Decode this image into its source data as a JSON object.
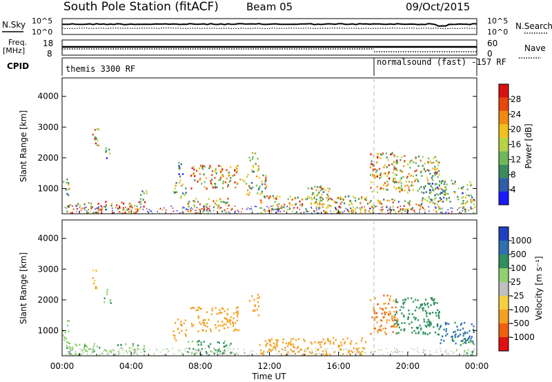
{
  "header": {
    "station": "South Pole Station (fitACF)",
    "beam": "Beam 05",
    "date": "09/Oct/2015"
  },
  "noise_panel": {
    "left_label": "N.Sky",
    "right_label": "N.Search",
    "top_tick": "10^5",
    "bottom_tick": "10^0"
  },
  "freq_panel": {
    "left_label_line1": "Freq.",
    "left_label_line2": "[MHz]",
    "left_top_tick": "18",
    "left_bottom_tick": "8",
    "right_label": "Nave",
    "right_top_tick": "60",
    "right_bottom_tick": "0"
  },
  "cpid_panel": {
    "label": "CPID",
    "mode1": "themis 3300 RF",
    "mode2": "normalsound (fast) -157 RF"
  },
  "power_panel": {
    "ylabel": "Slant Range [km]",
    "colorbar_label": "Power [dB]",
    "colorbar_ticks": [
      "28",
      "24",
      "20",
      "16",
      "12",
      "8",
      "4"
    ]
  },
  "velocity_panel": {
    "ylabel": "Slant Range [km]",
    "colorbar_label": "Velocity [m s⁻¹]",
    "colorbar_ticks": [
      "1000",
      "500",
      "100",
      "25",
      "-25",
      "-100",
      "-500",
      "-1000"
    ]
  },
  "xaxis": {
    "label": "Time UT"
  },
  "chart_data": [
    {
      "type": "heatmap",
      "name": "power",
      "xlabel": "Time UT",
      "ylabel": "Slant Range [km]",
      "x_ticks": [
        "00:00",
        "04:00",
        "08:00",
        "12:00",
        "16:00",
        "20:00",
        "00:00"
      ],
      "y_ticks": [
        1000,
        2000,
        3000,
        4000
      ],
      "xlim_hours": [
        0,
        24
      ],
      "ylim_km": [
        180,
        4600
      ],
      "mode_change_hour": 18.0,
      "color_scale": {
        "min": 0,
        "max": 32,
        "colors": [
          "#1a1aff",
          "#2e5fa6",
          "#3c8b5e",
          "#6fb75a",
          "#b7d243",
          "#f2c01a",
          "#f08a10",
          "#e8460a",
          "#d81010"
        ]
      },
      "clusters": [
        {
          "t0": 0.0,
          "t1": 0.4,
          "r0": 600,
          "r1": 1400,
          "value": 14
        },
        {
          "t0": 0.2,
          "t1": 4.8,
          "r0": 220,
          "r1": 600,
          "value": 20
        },
        {
          "t0": 1.7,
          "t1": 2.1,
          "r0": 2400,
          "r1": 3000,
          "value": 18
        },
        {
          "t0": 2.4,
          "t1": 2.8,
          "r0": 1900,
          "r1": 2400,
          "value": 10
        },
        {
          "t0": 4.5,
          "t1": 4.9,
          "r0": 600,
          "r1": 1000,
          "value": 12
        },
        {
          "t0": 6.4,
          "t1": 7.2,
          "r0": 700,
          "r1": 1400,
          "value": 14
        },
        {
          "t0": 6.6,
          "t1": 7.0,
          "r0": 1400,
          "r1": 1900,
          "value": 8
        },
        {
          "t0": 7.4,
          "t1": 10.2,
          "r0": 1000,
          "r1": 1800,
          "value": 21
        },
        {
          "t0": 7.2,
          "t1": 9.8,
          "r0": 220,
          "r1": 700,
          "value": 18
        },
        {
          "t0": 10.8,
          "t1": 11.4,
          "r0": 1500,
          "r1": 2200,
          "value": 15
        },
        {
          "t0": 10.2,
          "t1": 11.8,
          "r0": 800,
          "r1": 1500,
          "value": 16
        },
        {
          "t0": 11.4,
          "t1": 17.6,
          "r0": 220,
          "r1": 800,
          "value": 18
        },
        {
          "t0": 14.2,
          "t1": 15.6,
          "r0": 500,
          "r1": 1100,
          "value": 16
        },
        {
          "t0": 17.8,
          "t1": 19.4,
          "r0": 900,
          "r1": 2200,
          "value": 19
        },
        {
          "t0": 19.2,
          "t1": 21.8,
          "r0": 900,
          "r1": 2100,
          "value": 17
        },
        {
          "t0": 20.8,
          "t1": 22.2,
          "r0": 500,
          "r1": 1200,
          "value": 10
        },
        {
          "t0": 21.8,
          "t1": 23.8,
          "r0": 600,
          "r1": 1300,
          "value": 12
        },
        {
          "t0": 23.0,
          "t1": 24.0,
          "r0": 220,
          "r1": 700,
          "value": 14
        },
        {
          "t0": 17.6,
          "t1": 22.0,
          "r0": 220,
          "r1": 700,
          "value": 17
        }
      ]
    },
    {
      "type": "heatmap",
      "name": "velocity",
      "xlabel": "Time UT",
      "ylabel": "Slant Range [km]",
      "x_ticks": [
        "00:00",
        "04:00",
        "08:00",
        "12:00",
        "16:00",
        "20:00",
        "00:00"
      ],
      "y_ticks": [
        1000,
        2000,
        3000,
        4000
      ],
      "xlim_hours": [
        0,
        24
      ],
      "ylim_km": [
        180,
        4600
      ],
      "mode_change_hour": 18.0,
      "color_scale": {
        "levels": [
          -1000,
          -500,
          -100,
          -25,
          25,
          100,
          500,
          1000
        ],
        "colors": [
          "#e01010",
          "#f06010",
          "#f4a020",
          "#f4d040",
          "#c0c0c0",
          "#8fd070",
          "#2f8f5f",
          "#3070b0",
          "#2040c0"
        ]
      },
      "clusters": [
        {
          "t0": 0.0,
          "t1": 0.4,
          "r0": 600,
          "r1": 1400,
          "value": 60
        },
        {
          "t0": 0.2,
          "t1": 4.8,
          "r0": 220,
          "r1": 600,
          "value": 80
        },
        {
          "t0": 1.7,
          "t1": 2.1,
          "r0": 2400,
          "r1": 3000,
          "value": -120
        },
        {
          "t0": 2.4,
          "t1": 2.8,
          "r0": 1900,
          "r1": 2400,
          "value": 80
        },
        {
          "t0": 6.4,
          "t1": 7.2,
          "r0": 700,
          "r1": 1400,
          "value": -150
        },
        {
          "t0": 7.4,
          "t1": 10.2,
          "r0": 1000,
          "r1": 1800,
          "value": -300
        },
        {
          "t0": 7.2,
          "t1": 9.8,
          "r0": 220,
          "r1": 700,
          "value": 120
        },
        {
          "t0": 10.8,
          "t1": 11.4,
          "r0": 1500,
          "r1": 2200,
          "value": -350
        },
        {
          "t0": 11.4,
          "t1": 17.6,
          "r0": 220,
          "r1": 800,
          "value": -260
        },
        {
          "t0": 17.8,
          "t1": 19.4,
          "r0": 900,
          "r1": 2200,
          "value": -500
        },
        {
          "t0": 19.2,
          "t1": 21.8,
          "r0": 900,
          "r1": 2100,
          "value": 300
        },
        {
          "t0": 21.8,
          "t1": 23.8,
          "r0": 600,
          "r1": 1300,
          "value": 600
        },
        {
          "t0": 23.0,
          "t1": 24.0,
          "r0": 220,
          "r1": 700,
          "value": 100
        }
      ]
    }
  ]
}
